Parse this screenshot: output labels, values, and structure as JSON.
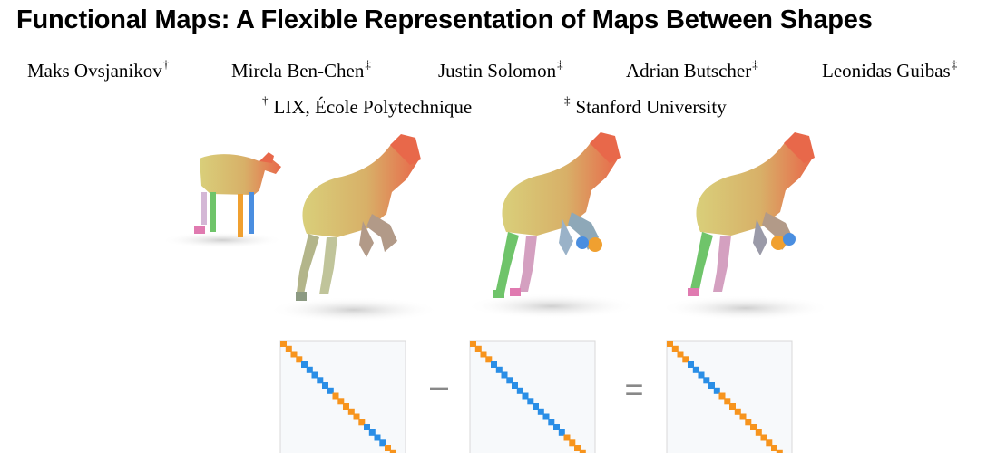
{
  "title": "Functional Maps: A Flexible Representation of Maps Between Shapes",
  "authors": [
    {
      "name": "Maks Ovsjanikov",
      "mark": "†"
    },
    {
      "name": "Mirela Ben-Chen",
      "mark": "‡"
    },
    {
      "name": "Justin Solomon",
      "mark": "‡"
    },
    {
      "name": "Adrian Butscher",
      "mark": "‡"
    },
    {
      "name": "Leonidas Guibas",
      "mark": "‡"
    }
  ],
  "affiliations": [
    {
      "mark": "†",
      "name": "LIX, École Polytechnique"
    },
    {
      "mark": "‡",
      "name": "Stanford University"
    }
  ],
  "figure": {
    "operator_minus": "–",
    "operator_equals": "=",
    "colors": {
      "blue": "#2a8ee6",
      "orange": "#f7941d",
      "body_yellow": "#d8c66a",
      "head_red": "#e8684a",
      "leg_green": "#6fc46a",
      "leg_pink": "#e07ab0",
      "leg_blue": "#4a8ee0",
      "leg_orange": "#f0a030"
    },
    "matrices": [
      {
        "name": "matrix-1",
        "diagonal_pattern": [
          "orange",
          "orange",
          "blue",
          "blue",
          "blue",
          "orange",
          "orange",
          "orange",
          "blue",
          "blue",
          "orange",
          "orange"
        ]
      },
      {
        "name": "matrix-2",
        "diagonal_pattern": [
          "orange",
          "orange",
          "blue",
          "blue",
          "blue",
          "blue",
          "blue",
          "blue",
          "blue",
          "orange",
          "orange",
          "orange"
        ]
      },
      {
        "name": "matrix-3",
        "diagonal_pattern": [
          "orange",
          "orange",
          "blue",
          "blue",
          "blue",
          "orange",
          "orange",
          "orange",
          "orange",
          "orange",
          "orange",
          "orange"
        ]
      }
    ]
  }
}
